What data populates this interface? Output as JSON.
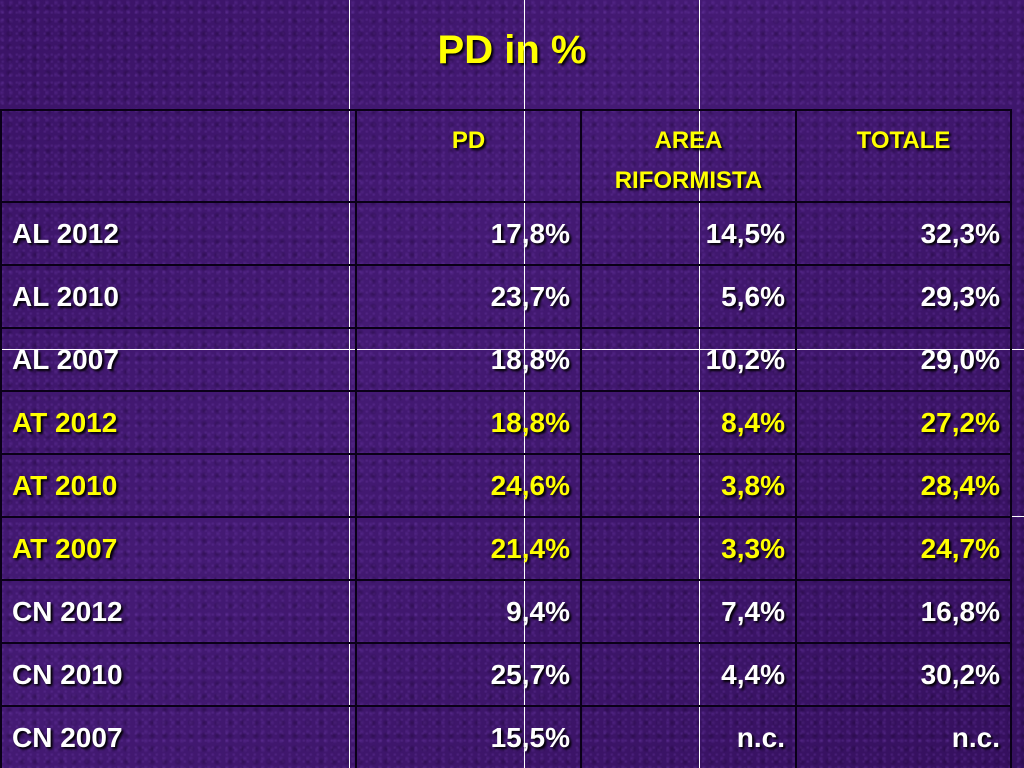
{
  "title": "PD in %",
  "table": {
    "headers": [
      "",
      "PD",
      "AREA RIFORMISTA",
      "TOTALE"
    ],
    "rows": [
      {
        "label": "AL 2012",
        "pd": "17,8%",
        "area": "14,5%",
        "totale": "32,3%"
      },
      {
        "label": "AL 2010",
        "pd": "23,7%",
        "area": "5,6%",
        "totale": "29,3%"
      },
      {
        "label": "AL 2007",
        "pd": "18,8%",
        "area": "10,2%",
        "totale": "29,0%"
      },
      {
        "label": "AT 2012",
        "pd": "18,8%",
        "area": "8,4%",
        "totale": "27,2%"
      },
      {
        "label": "AT 2010",
        "pd": "24,6%",
        "area": "3,8%",
        "totale": "28,4%"
      },
      {
        "label": "AT 2007",
        "pd": "21,4%",
        "area": "3,3%",
        "totale": "24,7%"
      },
      {
        "label": "CN 2012",
        "pd": "9,4%",
        "area": "7,4%",
        "totale": "16,8%"
      },
      {
        "label": "CN 2010",
        "pd": "25,7%",
        "area": "4,4%",
        "totale": "30,2%"
      },
      {
        "label": "CN 2007",
        "pd": "15,5%",
        "area": "n.c.",
        "totale": "n.c."
      }
    ]
  },
  "colors": {
    "background": "#3c1468",
    "title": "#ffff00",
    "header_text": "#ffff00",
    "highlight_rows_text": "#ffff00",
    "default_text": "#ffffff",
    "grid": "#0a0018"
  }
}
